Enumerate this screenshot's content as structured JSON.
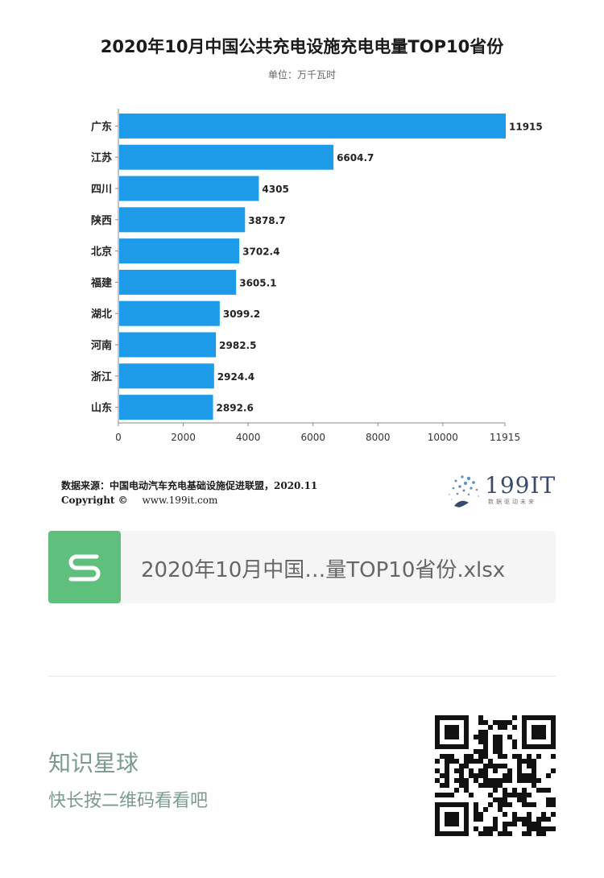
{
  "title": "2020年10月中国公共充电设施充电电量TOP10省份",
  "subtitle": "单位：万千瓦时",
  "chart_data": {
    "type": "bar",
    "orientation": "horizontal",
    "categories": [
      "广东",
      "江苏",
      "四川",
      "陕西",
      "北京",
      "福建",
      "湖北",
      "河南",
      "浙江",
      "山东"
    ],
    "values": [
      11915,
      6604.7,
      4305,
      3878.7,
      3702.4,
      3605.1,
      3099.2,
      2982.5,
      2924.4,
      2892.6
    ],
    "value_labels": [
      "11915",
      "6604.7",
      "4305",
      "3878.7",
      "3702.4",
      "3605.1",
      "3099.2",
      "2982.5",
      "2924.4",
      "2892.6"
    ],
    "xticks": [
      "0",
      "2000",
      "4000",
      "6000",
      "8000",
      "10000",
      "11915"
    ],
    "xtick_values": [
      0,
      2000,
      4000,
      6000,
      8000,
      10000,
      11915
    ],
    "xlim": [
      0,
      11915
    ],
    "bar_color": "#1e9be8",
    "grid": false,
    "legend": "none"
  },
  "source": "数据来源：中国电动汽车充电基础设施促进联盟，2020.11",
  "copyright": {
    "label": "Copyright ©",
    "url": "www.199it.com"
  },
  "logo": {
    "name": "199IT",
    "tagline": "数据驱动未来",
    "icon": "dandelion-logo-icon"
  },
  "file": {
    "name": "2020年10月中国…量TOP10省份.xlsx",
    "icon": "spreadsheet-s-icon",
    "color": "#5fbf7c"
  },
  "planet": {
    "title": "知识星球",
    "hint": "快长按二维码看看吧",
    "icon": "qr-code-icon"
  }
}
